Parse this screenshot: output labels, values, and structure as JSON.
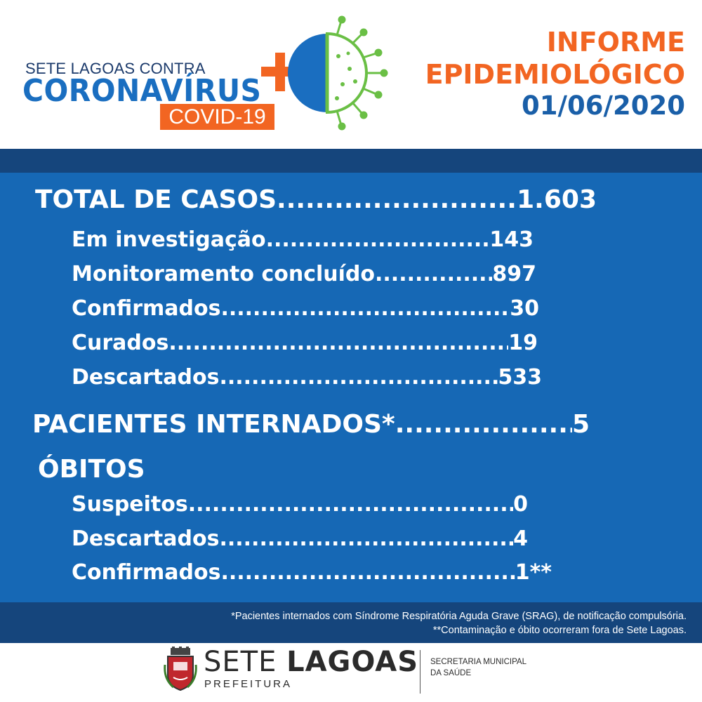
{
  "header": {
    "campaign_top": "SETE LAGOAS CONTRA",
    "campaign_main": "CORONAVÍRUS",
    "campaign_tag": "COVID-19",
    "report_line1": "INFORME",
    "report_line2": "EPIDEMIOLÓGICO",
    "report_date": "01/06/2020"
  },
  "stats": {
    "total": {
      "label": "TOTAL DE CASOS",
      "value": "1.603"
    },
    "breakdown": [
      {
        "label": "Em investigação",
        "value": "143"
      },
      {
        "label": "Monitoramento concluído",
        "value": "897"
      },
      {
        "label": "Confirmados",
        "value": "30"
      },
      {
        "label": "Curados",
        "value": "19"
      },
      {
        "label": "Descartados",
        "value": "533"
      }
    ],
    "hospitalized": {
      "label": "PACIENTES INTERNADOS*",
      "value": "5"
    },
    "deaths": {
      "title": "ÓBITOS",
      "items": [
        {
          "label": "Suspeitos",
          "value": "0"
        },
        {
          "label": "Descartados",
          "value": "4"
        },
        {
          "label": "Confirmados",
          "value": "1**"
        }
      ]
    }
  },
  "footnotes": [
    "*Pacientes internados com Síndrome Respiratória Aguda Grave (SRAG), de notificação compulsória.",
    "**Contaminação e óbito ocorreram fora de Sete Lagoas."
  ],
  "footer": {
    "city_light": "SETE",
    "city_bold": "LAGOAS",
    "prefeitura": "PREFEITURA",
    "secretaria_line1": "SECRETARIA MUNICIPAL",
    "secretaria_line2": "DA SAÚDE"
  },
  "colors": {
    "orange": "#f26522",
    "blue_panel": "#1668b5",
    "blue_dark": "#15457c",
    "blue_text": "#1a5fa8",
    "green_virus": "#6abf45"
  },
  "icons": [
    "plus-icon",
    "virus-icon",
    "city-crest-icon"
  ]
}
